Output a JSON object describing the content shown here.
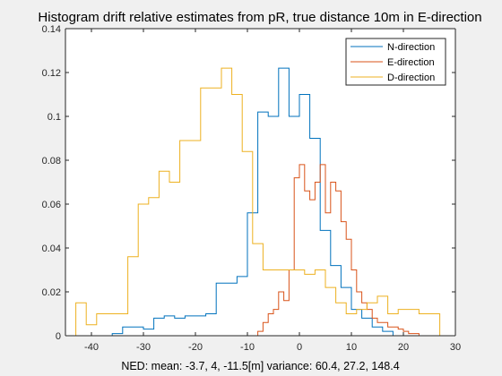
{
  "chart_data": {
    "type": "histogram",
    "title": "Histogram drift relative estimates from pR, true distance 10m in E-direction",
    "xlabel": "NED: mean: -3.7, 4, -11.5[m] variance: 60.4, 27.2, 148.4",
    "ylabel": "",
    "xlim": [
      -45,
      30
    ],
    "ylim": [
      0,
      0.14
    ],
    "xticks": [
      -40,
      -30,
      -20,
      -10,
      0,
      10,
      20,
      30
    ],
    "xtick_labels": [
      "-40",
      "-30",
      "-20",
      "-10",
      "0",
      "10",
      "20",
      "30"
    ],
    "yticks": [
      0,
      0.02,
      0.04,
      0.06,
      0.08,
      0.1,
      0.12,
      0.14
    ],
    "ytick_labels": [
      "0",
      "0.02",
      "0.04",
      "0.06",
      "0.08",
      "0.1",
      "0.12",
      "0.14"
    ],
    "grid": false,
    "legend_position": "top-right",
    "series": [
      {
        "name": "N-direction",
        "color": "#0072BD",
        "edges": [
          -37.5,
          -36,
          -34,
          -32,
          -30,
          -28,
          -26,
          -24,
          -22,
          -20,
          -18,
          -16,
          -14,
          -12,
          -10,
          -8,
          -6,
          -4,
          -2,
          0,
          2,
          4,
          6,
          8,
          10,
          12,
          14,
          16,
          18,
          20
        ],
        "values": [
          0,
          0.001,
          0.004,
          0.004,
          0.003,
          0.008,
          0.009,
          0.008,
          0.009,
          0.009,
          0.01,
          0.024,
          0.024,
          0.027,
          0.056,
          0.102,
          0.1,
          0.122,
          0.1,
          0.11,
          0.09,
          0.048,
          0.032,
          0.022,
          0.012,
          0.008,
          0.004,
          0.002,
          0
        ]
      },
      {
        "name": "E-direction",
        "color": "#D95319",
        "edges": [
          -8,
          -7,
          -6,
          -5,
          -4,
          -3,
          -2,
          -1,
          0,
          1,
          2,
          3,
          4,
          5,
          6,
          7,
          8,
          9,
          10,
          11,
          12,
          13,
          14,
          15,
          16,
          17,
          18,
          19,
          20,
          21,
          22,
          23
        ],
        "values": [
          0.002,
          0.006,
          0.01,
          0.012,
          0.02,
          0.016,
          0.03,
          0.072,
          0.078,
          0.066,
          0.062,
          0.07,
          0.078,
          0.056,
          0.07,
          0.066,
          0.052,
          0.044,
          0.03,
          0.02,
          0.015,
          0.012,
          0.008,
          0.006,
          0.006,
          0.004,
          0.004,
          0.003,
          0.002,
          0.001,
          0.001
        ]
      },
      {
        "name": "D-direction",
        "color": "#EDB120",
        "edges": [
          -43,
          -41,
          -39,
          -37,
          -35,
          -33,
          -31,
          -29,
          -27,
          -25,
          -23,
          -21,
          -19,
          -17,
          -15,
          -13,
          -11,
          -9,
          -7,
          -5,
          -3,
          -1,
          1,
          3,
          5,
          7,
          9,
          11,
          13,
          15,
          17,
          19,
          21,
          23,
          25,
          27
        ],
        "values": [
          0.015,
          0.005,
          0.01,
          0.01,
          0.01,
          0.036,
          0.06,
          0.063,
          0.075,
          0.07,
          0.089,
          0.089,
          0.113,
          0.113,
          0.122,
          0.11,
          0.084,
          0.042,
          0.03,
          0.03,
          0.03,
          0.03,
          0.028,
          0.03,
          0.022,
          0.015,
          0.01,
          0.012,
          0.015,
          0.018,
          0.01,
          0.012,
          0.012,
          0.01,
          0.01
        ]
      }
    ]
  }
}
